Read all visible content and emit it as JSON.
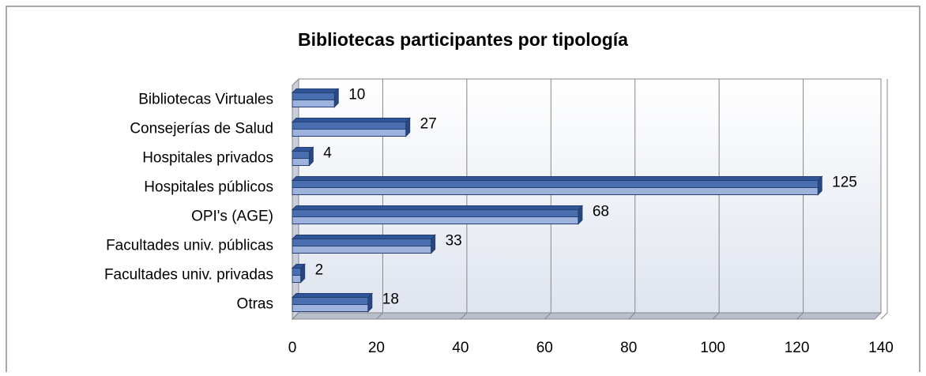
{
  "chart_data": {
    "type": "bar",
    "orientation": "horizontal",
    "title": "Bibliotecas participantes por tipología",
    "categories": [
      "Bibliotecas Virtuales",
      "Consejerías de Salud",
      "Hospitales privados",
      "Hospitales públicos",
      "OPI's (AGE)",
      "Facultades univ. públicas",
      "Facultades univ. privadas",
      "Otras"
    ],
    "values": [
      10,
      27,
      4,
      125,
      68,
      33,
      2,
      18
    ],
    "color": "#4a6fb0",
    "xlim": [
      0,
      140
    ],
    "xticks": [
      0,
      20,
      40,
      60,
      80,
      100,
      120,
      140
    ],
    "grid": true
  }
}
